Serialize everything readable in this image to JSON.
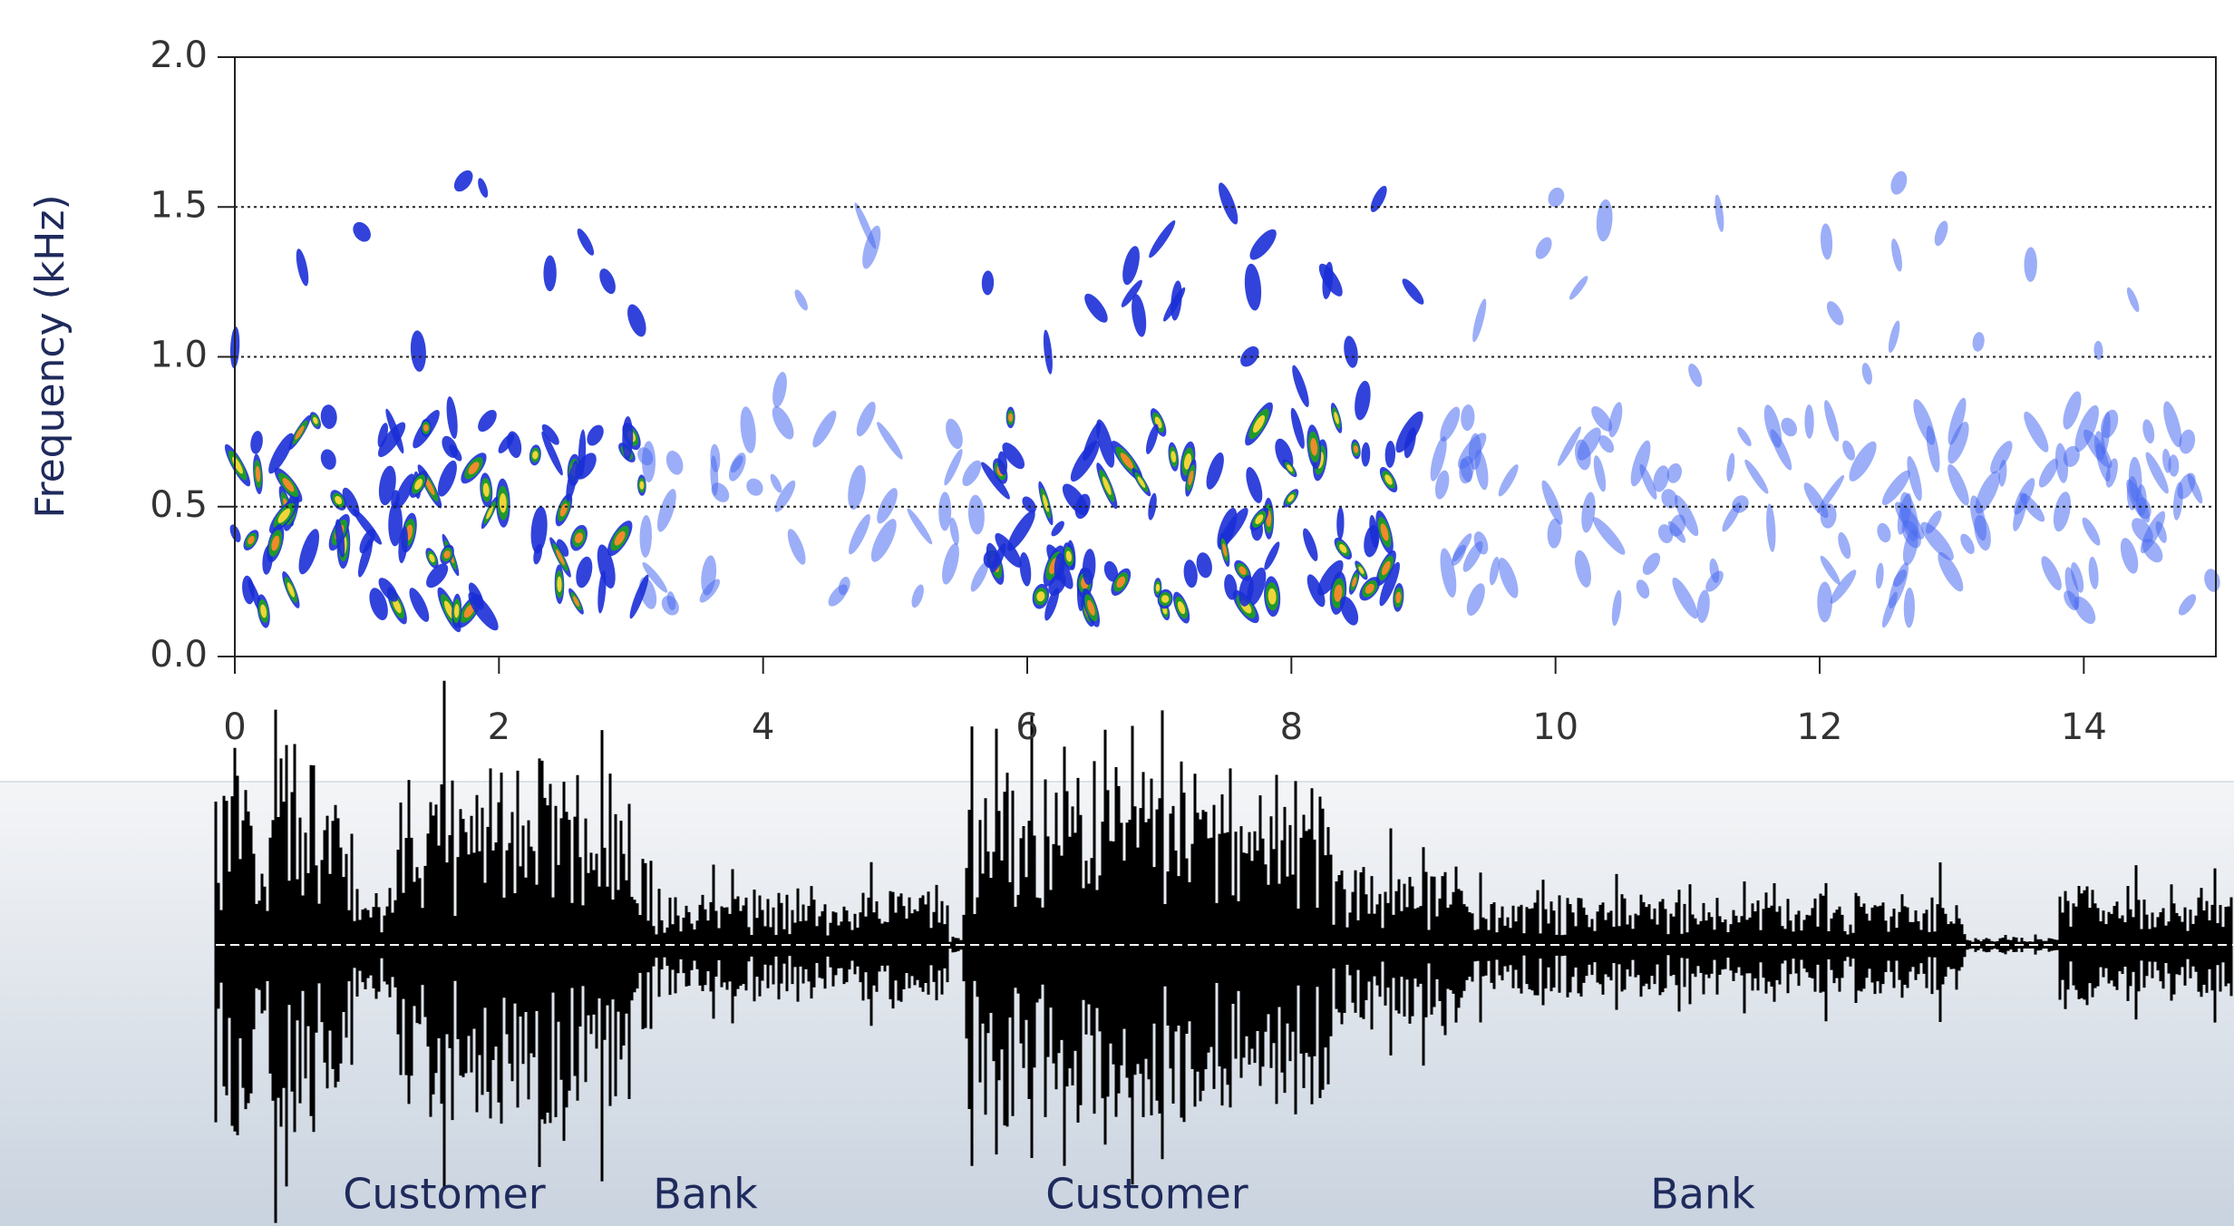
{
  "chart_data": {
    "type": "spectrogram",
    "ylabel": "Frequency (kHz)",
    "xlim": [
      0,
      15
    ],
    "ylim": [
      0,
      2
    ],
    "xticks": [
      0,
      2,
      4,
      6,
      8,
      10,
      12,
      14
    ],
    "yticks": [
      {
        "value": 0,
        "label": "0.0"
      },
      0.5,
      {
        "value": 1,
        "label": "1.0"
      },
      1.5,
      {
        "value": 2,
        "label": "2.0"
      }
    ],
    "grid": true,
    "segments": [
      "Customer",
      "Bank",
      "Customer",
      "Bank"
    ]
  }
}
